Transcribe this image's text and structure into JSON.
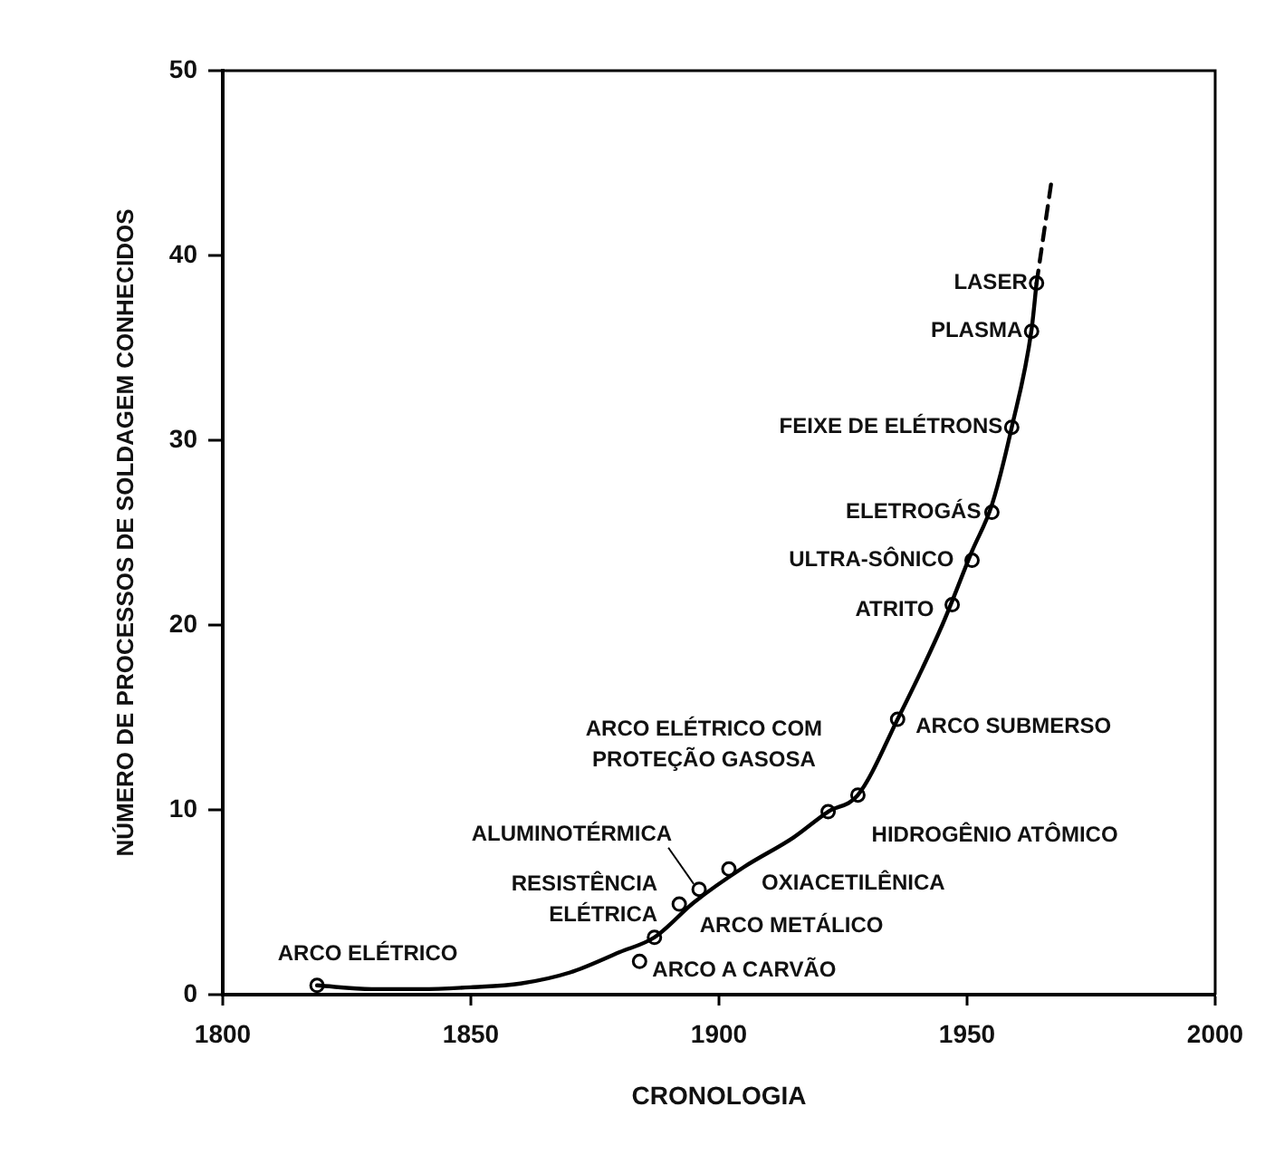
{
  "chart_data": {
    "type": "line",
    "xlabel": "CRONOLOGIA",
    "ylabel": "NÚMERO DE PROCESSOS DE SOLDAGEM CONHECIDOS",
    "xlim": [
      1800,
      2000
    ],
    "xticks": [
      1800,
      1850,
      1900,
      1950,
      2000
    ],
    "ylim": [
      0,
      50
    ],
    "yticks": [
      0,
      10,
      20,
      30,
      40,
      50
    ],
    "legend": false,
    "series": [
      {
        "type": "line",
        "x": [
          1819,
          1830,
          1840,
          1850,
          1860,
          1870,
          1880,
          1887,
          1895,
          1905,
          1915,
          1922,
          1928,
          1936,
          1945,
          1951,
          1955,
          1959,
          1963,
          1964
        ],
        "values": [
          0.5,
          0.3,
          0.3,
          0.4,
          0.6,
          1.2,
          2.3,
          3.1,
          5,
          6.9,
          8.5,
          9.9,
          10.8,
          14.9,
          20,
          24,
          26.5,
          30.7,
          36,
          38.5
        ],
        "color": "#000000",
        "marker": "none",
        "line_style": "solid"
      },
      {
        "type": "line",
        "x": [
          1964,
          1967
        ],
        "values": [
          38.5,
          44
        ],
        "color": "#000000",
        "marker": "none",
        "line_style": "dashed"
      },
      {
        "type": "scatter",
        "x": [
          1819,
          1884,
          1887,
          1892,
          1896,
          1902,
          1922,
          1928,
          1936,
          1947,
          1951,
          1955,
          1959,
          1963,
          1964
        ],
        "values": [
          0.5,
          1.8,
          3.1,
          4.9,
          5.7,
          6.8,
          9.9,
          10.8,
          14.9,
          21.1,
          23.5,
          26.1,
          30.7,
          35.9,
          38.5
        ],
        "color": "#000000",
        "marker": "circle"
      }
    ],
    "annotations": [
      {
        "text": "ARCO ELÉTRICO",
        "x": 1819,
        "y": 0.5
      },
      {
        "text": "ARCO A CARVÃO",
        "x": 1884,
        "y": 1.8
      },
      {
        "text": "ARCO METÁLICO",
        "x": 1887,
        "y": 3.1
      },
      {
        "text": "RESISTÊNCIA ELÉTRICA",
        "x": 1892,
        "y": 4.9
      },
      {
        "text": "ALUMINOTÉRMICA",
        "x": 1896,
        "y": 5.7
      },
      {
        "text": "OXIACETILÊNICA",
        "x": 1902,
        "y": 6.8
      },
      {
        "text": "HIDROGÊNIO ATÔMICO",
        "x": 1922,
        "y": 9.9
      },
      {
        "text": "ARCO ELÉTRICO COM PROTEÇÃO GASOSA",
        "x": 1928,
        "y": 10.8
      },
      {
        "text": "ARCO SUBMERSO",
        "x": 1936,
        "y": 14.9
      },
      {
        "text": "ATRITO",
        "x": 1947,
        "y": 21.1
      },
      {
        "text": "ULTRA-SÔNICO",
        "x": 1951,
        "y": 23.5
      },
      {
        "text": "ELETROGÁS",
        "x": 1955,
        "y": 26.1
      },
      {
        "text": "FEIXE DE ELÉTRONS",
        "x": 1959,
        "y": 30.7
      },
      {
        "text": "PLASMA",
        "x": 1963,
        "y": 35.9
      },
      {
        "text": "LASER",
        "x": 1964,
        "y": 38.5
      }
    ]
  }
}
